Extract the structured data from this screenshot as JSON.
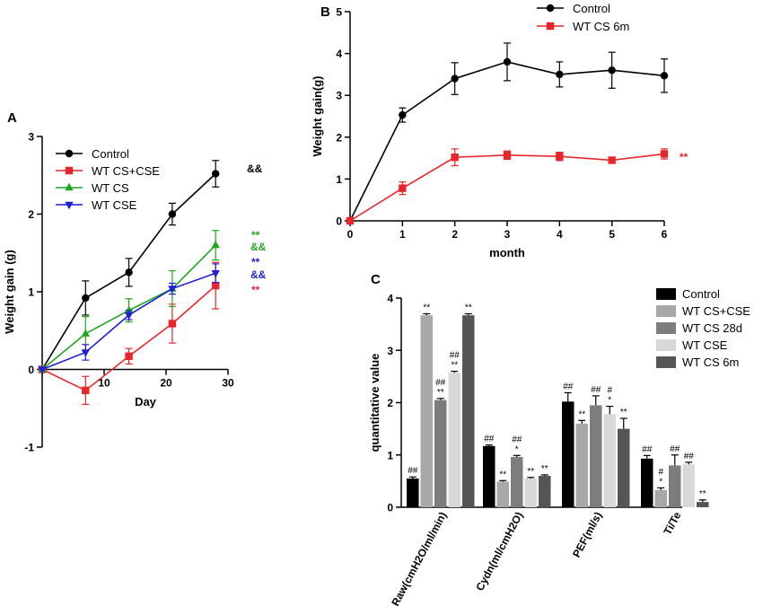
{
  "chart_data": [
    {
      "panel": "A",
      "type": "line",
      "xlabel": "Day",
      "ylabel": "Weight gain (g)",
      "xlim": [
        0,
        30
      ],
      "ylim": [
        -1,
        3
      ],
      "xticks": [
        0,
        10,
        20,
        30
      ],
      "yticks": [
        -1,
        0,
        1,
        2,
        3
      ],
      "legend_position": "top-left",
      "x": [
        0,
        7,
        14,
        21,
        28
      ],
      "series": [
        {
          "name": "Control",
          "color": "#000000",
          "marker": "circle",
          "values": [
            0,
            0.92,
            1.25,
            2.0,
            2.52
          ],
          "errors": [
            0,
            0.22,
            0.18,
            0.14,
            0.17
          ],
          "annotations": [
            {
              "text": "&&",
              "color": "#000000"
            }
          ]
        },
        {
          "name": "WT CS+CSE",
          "color": "#e8252a",
          "marker": "square",
          "values": [
            0,
            -0.27,
            0.17,
            0.59,
            1.08
          ],
          "errors": [
            0,
            0.18,
            0.1,
            0.25,
            0.3
          ],
          "annotations": [
            {
              "text": "**",
              "color": "#e8252a"
            }
          ]
        },
        {
          "name": "WT CS",
          "color": "#1fa81f",
          "marker": "triangle-up",
          "values": [
            0,
            0.46,
            0.76,
            1.04,
            1.6
          ],
          "errors": [
            0,
            0.22,
            0.15,
            0.23,
            0.19
          ],
          "annotations": [
            {
              "text": "**",
              "color": "#1fa81f"
            },
            {
              "text": "&&",
              "color": "#1fa81f"
            }
          ]
        },
        {
          "name": "WT CSE",
          "color": "#1f1fd6",
          "marker": "triangle-down",
          "values": [
            0,
            0.22,
            0.7,
            1.04,
            1.24
          ],
          "errors": [
            0,
            0.1,
            0.06,
            0.07,
            0.12
          ],
          "annotations": [
            {
              "text": "**",
              "color": "#1f1fd6"
            },
            {
              "text": "&&",
              "color": "#1f1fd6"
            }
          ]
        }
      ]
    },
    {
      "panel": "B",
      "type": "line",
      "xlabel": "month",
      "ylabel": "Weight gain(g)",
      "xlim": [
        0,
        6
      ],
      "ylim": [
        0,
        5
      ],
      "xticks": [
        0,
        1,
        2,
        3,
        4,
        5,
        6
      ],
      "yticks": [
        0,
        1,
        2,
        3,
        4,
        5
      ],
      "legend_position": "top-right",
      "x": [
        0,
        1,
        2,
        3,
        4,
        5,
        6
      ],
      "series": [
        {
          "name": "Control",
          "color": "#000000",
          "marker": "circle",
          "values": [
            0,
            2.53,
            3.4,
            3.8,
            3.5,
            3.6,
            3.47
          ],
          "errors": [
            0,
            0.17,
            0.38,
            0.45,
            0.3,
            0.43,
            0.4
          ]
        },
        {
          "name": "WT CS 6m",
          "color": "#e8252a",
          "marker": "square",
          "values": [
            0,
            0.78,
            1.52,
            1.57,
            1.54,
            1.45,
            1.6
          ],
          "errors": [
            0,
            0.15,
            0.2,
            0.1,
            0.1,
            0.07,
            0.12
          ],
          "annotations": [
            {
              "text": "**",
              "color": "#e8252a"
            }
          ]
        }
      ]
    },
    {
      "panel": "C",
      "type": "bar",
      "ylabel": "quantitative value",
      "ylim": [
        0,
        4
      ],
      "yticks": [
        0,
        1,
        2,
        3,
        4
      ],
      "legend_position": "top-right",
      "categories": [
        "Raw(cmH2O/ml/min)",
        "Cydn(ml/cmH2O)",
        "PEF(ml/s)",
        "Ti/Te"
      ],
      "series": [
        {
          "name": "Control",
          "color": "#000000",
          "values": [
            0.55,
            1.17,
            2.02,
            0.93
          ],
          "errors": [
            0.03,
            0.02,
            0.17,
            0.06
          ],
          "labels": [
            [
              "##"
            ],
            [
              "##"
            ],
            [
              "##"
            ],
            [
              "##"
            ]
          ]
        },
        {
          "name": "WT CS+CSE",
          "color": "#a8a8a8",
          "values": [
            3.67,
            0.49,
            1.6,
            0.33
          ],
          "errors": [
            0.03,
            0.02,
            0.06,
            0.04
          ],
          "labels": [
            [
              "**"
            ],
            [
              "**"
            ],
            [
              "**"
            ],
            [
              "#",
              "*"
            ]
          ]
        },
        {
          "name": "WT CS 28d",
          "color": "#7d7d7d",
          "values": [
            2.05,
            0.96,
            1.95,
            0.8
          ],
          "errors": [
            0.03,
            0.03,
            0.18,
            0.2
          ],
          "labels": [
            [
              "##",
              "**"
            ],
            [
              "##",
              "*"
            ],
            [
              "##"
            ],
            [
              "##"
            ]
          ]
        },
        {
          "name": "WT CSE",
          "color": "#d8d8d8",
          "values": [
            2.57,
            0.55,
            1.78,
            0.82
          ],
          "errors": [
            0.03,
            0.02,
            0.15,
            0.04
          ],
          "labels": [
            [
              "##",
              "**"
            ],
            [
              "**"
            ],
            [
              "#",
              "*"
            ],
            [
              "##"
            ]
          ]
        },
        {
          "name": "WT CS 6m",
          "color": "#555555",
          "values": [
            3.67,
            0.6,
            1.5,
            0.1
          ],
          "errors": [
            0.03,
            0.02,
            0.2,
            0.04
          ],
          "labels": [
            [
              "**"
            ],
            [
              "**"
            ],
            [
              "**"
            ],
            [
              "**"
            ]
          ]
        }
      ]
    }
  ],
  "panel_labels": [
    "A",
    "B",
    "C"
  ]
}
